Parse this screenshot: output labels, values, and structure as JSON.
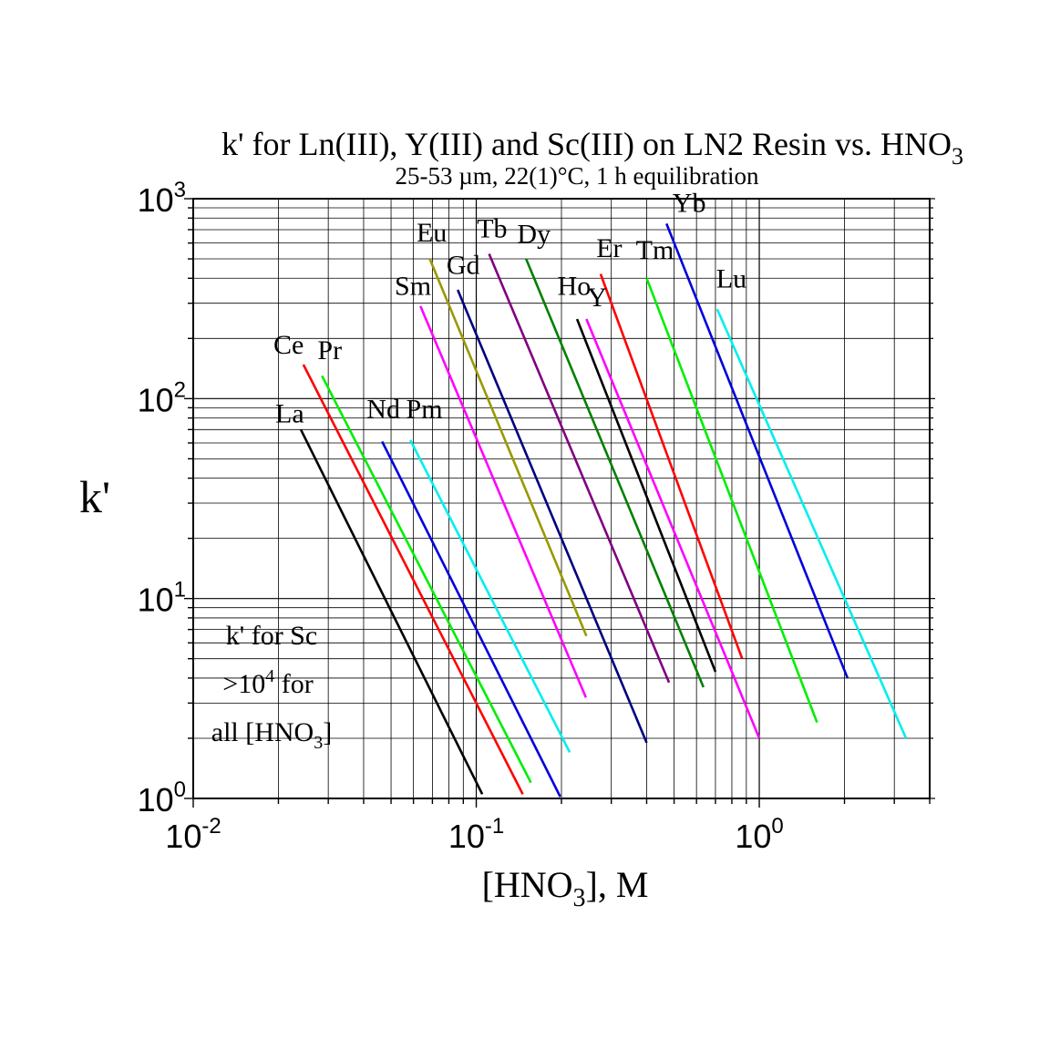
{
  "chart_data": {
    "type": "line",
    "title": {
      "main": "k' for Ln(III), Y(III) and Sc(III) on LN2 Resin vs. HNO",
      "main_sub": "3",
      "subtitle": "25-53 µm, 22(1)°C, 1 h equilibration"
    },
    "xlabel": {
      "pre": "[HNO",
      "sub": "3",
      "post": "], M"
    },
    "ylabel": "k'",
    "x_scale": "log",
    "y_scale": "log",
    "xlim": [
      0.01,
      4.0
    ],
    "ylim": [
      1,
      1000
    ],
    "grid": true,
    "x_ticks": [
      {
        "value": 0.01,
        "base": "10",
        "exp": "-2"
      },
      {
        "value": 0.1,
        "base": "10",
        "exp": "-1"
      },
      {
        "value": 1,
        "base": "10",
        "exp": "0"
      }
    ],
    "y_ticks": [
      {
        "value": 1,
        "base": "10",
        "exp": "0"
      },
      {
        "value": 10,
        "base": "10",
        "exp": "1"
      },
      {
        "value": 100,
        "base": "10",
        "exp": "2"
      },
      {
        "value": 1000,
        "base": "10",
        "exp": "3"
      }
    ],
    "annotation": {
      "line1": "k' for Sc",
      "line2_pre": ">10",
      "line2_sup": "4",
      "line2_post": " for",
      "line3_pre": "all [HNO",
      "line3_sub": "3",
      "line3_post": "]"
    },
    "series": [
      {
        "name": "La",
        "color": "#000000",
        "x": [
          0.024,
          0.105
        ],
        "y": [
          70,
          1.05
        ],
        "label_x": 0.0195,
        "label_y": 76
      },
      {
        "name": "Ce",
        "color": "#ff0000",
        "x": [
          0.0245,
          0.146
        ],
        "y": [
          148,
          1.05
        ],
        "label_x": 0.0192,
        "label_y": 168
      },
      {
        "name": "Pr",
        "color": "#00ee00",
        "x": [
          0.0285,
          0.156
        ],
        "y": [
          130,
          1.2
        ],
        "label_x": 0.0275,
        "label_y": 158
      },
      {
        "name": "Nd",
        "color": "#0000dd",
        "x": [
          0.0465,
          0.198
        ],
        "y": [
          61,
          1.02
        ],
        "label_x": 0.041,
        "label_y": 80
      },
      {
        "name": "Pm",
        "color": "#00eeee",
        "x": [
          0.0585,
          0.214
        ],
        "y": [
          62,
          1.7
        ],
        "label_x": 0.0565,
        "label_y": 80
      },
      {
        "name": "Sm",
        "color": "#ff00ff",
        "x": [
          0.0635,
          0.244
        ],
        "y": [
          290,
          3.2
        ],
        "label_x": 0.0515,
        "label_y": 330
      },
      {
        "name": "Eu",
        "color": "#999900",
        "x": [
          0.0685,
          0.245
        ],
        "y": [
          500,
          6.5
        ],
        "label_x": 0.0615,
        "label_y": 610
      },
      {
        "name": "Gd",
        "color": "#000080",
        "x": [
          0.086,
          0.4
        ],
        "y": [
          350,
          1.9
        ],
        "label_x": 0.0785,
        "label_y": 420
      },
      {
        "name": "Tb",
        "color": "#800080",
        "x": [
          0.111,
          0.48
        ],
        "y": [
          530,
          3.8
        ],
        "label_x": 0.1005,
        "label_y": 640
      },
      {
        "name": "Dy",
        "color": "#008000",
        "x": [
          0.15,
          0.635
        ],
        "y": [
          500,
          3.6
        ],
        "label_x": 0.1395,
        "label_y": 600
      },
      {
        "name": "Ho",
        "color": "#000000",
        "x": [
          0.227,
          0.7
        ],
        "y": [
          250,
          4.3
        ],
        "label_x": 0.1935,
        "label_y": 330
      },
      {
        "name": "Y",
        "color": "#ff00ff",
        "x": [
          0.245,
          1.0
        ],
        "y": [
          250,
          2.0
        ],
        "label_x": 0.2465,
        "label_y": 290
      },
      {
        "name": "Er",
        "color": "#ff0000",
        "x": [
          0.275,
          0.87
        ],
        "y": [
          420,
          5.0
        ],
        "label_x": 0.2655,
        "label_y": 510
      },
      {
        "name": "Tm",
        "color": "#00ee00",
        "x": [
          0.4,
          1.6
        ],
        "y": [
          400,
          2.4
        ],
        "label_x": 0.3665,
        "label_y": 500
      },
      {
        "name": "Yb",
        "color": "#0000dd",
        "x": [
          0.47,
          2.05
        ],
        "y": [
          750,
          4.0
        ],
        "label_x": 0.4935,
        "label_y": 860
      },
      {
        "name": "Lu",
        "color": "#00eeee",
        "x": [
          0.71,
          3.3
        ],
        "y": [
          280,
          2.0
        ],
        "label_x": 0.7045,
        "label_y": 360
      }
    ]
  }
}
